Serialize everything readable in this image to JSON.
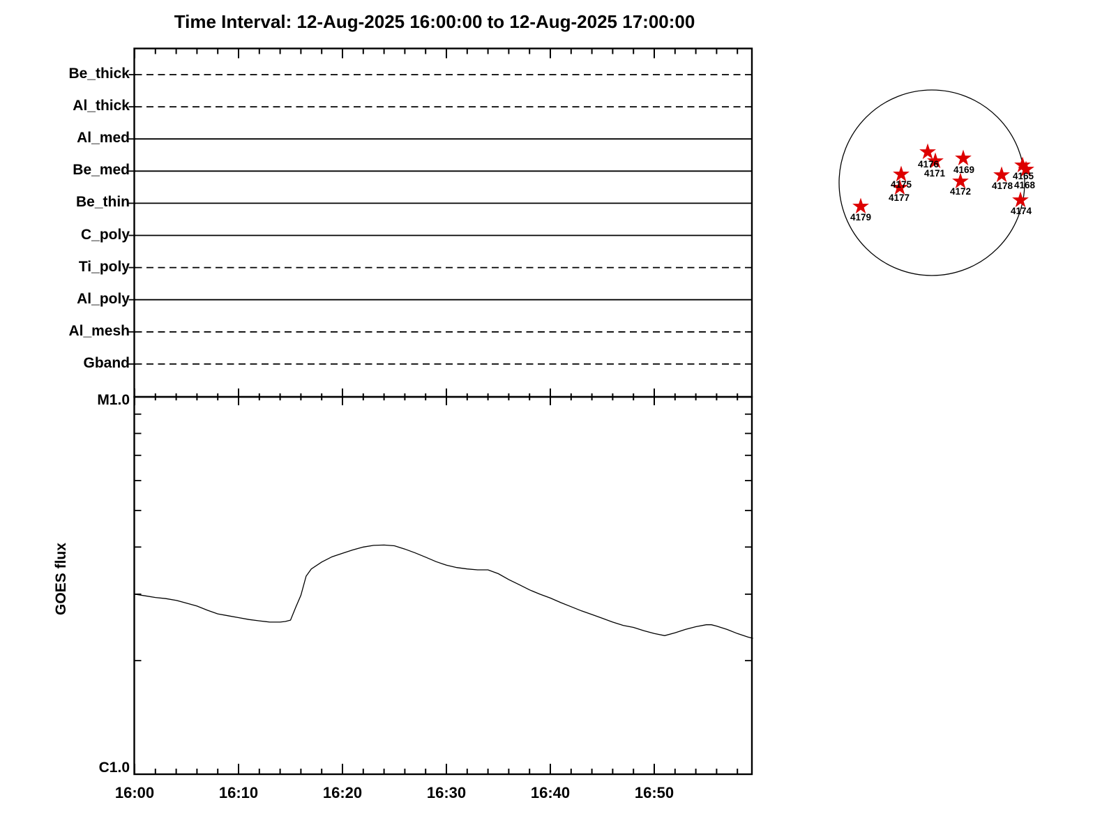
{
  "title": "Time Interval: 12-Aug-2025 16:00:00 to 12-Aug-2025 17:00:00",
  "colors": {
    "background": "#ffffff",
    "foreground": "#000000",
    "star": "#dd0000"
  },
  "filter_panel": {
    "filters": [
      {
        "label": "Be_thick",
        "style": "dashed"
      },
      {
        "label": "Al_thick",
        "style": "dashed"
      },
      {
        "label": "Al_med",
        "style": "solid"
      },
      {
        "label": "Be_med",
        "style": "solid"
      },
      {
        "label": "Be_thin",
        "style": "solid"
      },
      {
        "label": "C_poly",
        "style": "solid"
      },
      {
        "label": "Ti_poly",
        "style": "dashed"
      },
      {
        "label": "Al_poly",
        "style": "solid"
      },
      {
        "label": "Al_mesh",
        "style": "dashed"
      },
      {
        "label": "Gband",
        "style": "dashed"
      }
    ]
  },
  "goes_panel": {
    "ylabel": "GOES flux",
    "y_top_label": "M1.0",
    "y_bottom_label": "C1.0",
    "x_tick_labels": [
      "16:00",
      "16:10",
      "16:20",
      "16:30",
      "16:40",
      "16:50"
    ]
  },
  "solar_disk": {
    "active_regions": [
      {
        "id": "4165",
        "star": [
          1466,
          237
        ],
        "label": [
          1467,
          253
        ]
      },
      {
        "id": "4168",
        "star": [
          1471,
          243
        ],
        "label": [
          1469,
          266
        ]
      },
      {
        "id": "4169",
        "star": [
          1381,
          227
        ],
        "label": [
          1382,
          244
        ]
      },
      {
        "id": "4171",
        "star": [
          1341,
          231
        ],
        "label": [
          1340,
          249
        ]
      },
      {
        "id": "4172",
        "star": [
          1377,
          260
        ],
        "label": [
          1377,
          275
        ]
      },
      {
        "id": "4174",
        "star": [
          1463,
          287
        ],
        "label": [
          1464,
          303
        ]
      },
      {
        "id": "4175",
        "star": [
          1292,
          250
        ],
        "label": [
          1292,
          265
        ]
      },
      {
        "id": "4176",
        "star": [
          1330,
          218
        ],
        "label": [
          1331,
          236
        ]
      },
      {
        "id": "4177",
        "star": [
          1290,
          269
        ],
        "label": [
          1289,
          284
        ]
      },
      {
        "id": "4178",
        "star": [
          1436,
          251
        ],
        "label": [
          1437,
          267
        ]
      },
      {
        "id": "4179",
        "star": [
          1234,
          296
        ],
        "label": [
          1234,
          312
        ]
      }
    ]
  },
  "chart_data": {
    "type": "line",
    "title": "Time Interval: 12-Aug-2025 16:00:00 to 12-Aug-2025 17:00:00",
    "xlabel": "",
    "ylabel": "GOES flux",
    "x_ticks": [
      "16:00",
      "16:10",
      "16:20",
      "16:30",
      "16:40",
      "16:50"
    ],
    "x_range_minutes": [
      0,
      59.5
    ],
    "y_scale": "log",
    "y_axis_labels": [
      "C1.0",
      "M1.0"
    ],
    "grid": false,
    "legend": "none",
    "filter_timeline_rows": [
      "Be_thick",
      "Al_thick",
      "Al_med",
      "Be_med",
      "Be_thin",
      "C_poly",
      "Ti_poly",
      "Al_poly",
      "Al_mesh",
      "Gband"
    ],
    "filter_timeline_styles": [
      "dashed",
      "dashed",
      "solid",
      "solid",
      "solid",
      "solid",
      "dashed",
      "solid",
      "dashed",
      "dashed"
    ],
    "active_region_numbers": [
      "4165",
      "4168",
      "4169",
      "4171",
      "4172",
      "4174",
      "4175",
      "4176",
      "4177",
      "4178",
      "4179"
    ],
    "series": [
      {
        "name": "GOES flux",
        "x_minutes_after_1600": [
          0,
          1,
          2,
          3,
          4,
          5,
          6,
          7,
          8,
          9,
          10,
          11,
          12,
          13,
          14,
          14.5,
          15,
          15.5,
          16,
          16.5,
          17,
          18,
          19,
          20,
          21,
          22,
          23,
          24,
          25,
          26,
          27,
          28,
          29,
          30,
          31,
          32,
          33,
          34,
          35,
          36,
          37,
          38,
          39,
          40,
          41,
          42,
          43,
          44,
          45,
          46,
          47,
          48,
          49,
          50,
          51,
          52,
          53,
          54,
          55,
          55.5,
          56,
          57,
          58,
          59,
          59.5
        ],
        "flux_c_units": [
          3.0,
          2.97,
          2.94,
          2.92,
          2.89,
          2.84,
          2.79,
          2.72,
          2.66,
          2.63,
          2.6,
          2.57,
          2.55,
          2.53,
          2.53,
          2.54,
          2.56,
          2.77,
          2.98,
          3.35,
          3.5,
          3.65,
          3.77,
          3.85,
          3.93,
          4.0,
          4.04,
          4.05,
          4.03,
          3.95,
          3.86,
          3.76,
          3.66,
          3.58,
          3.53,
          3.5,
          3.48,
          3.48,
          3.4,
          3.28,
          3.18,
          3.08,
          3.0,
          2.93,
          2.85,
          2.78,
          2.71,
          2.65,
          2.59,
          2.53,
          2.48,
          2.45,
          2.4,
          2.36,
          2.33,
          2.37,
          2.42,
          2.46,
          2.49,
          2.49,
          2.47,
          2.42,
          2.36,
          2.31,
          2.29
        ]
      }
    ]
  }
}
